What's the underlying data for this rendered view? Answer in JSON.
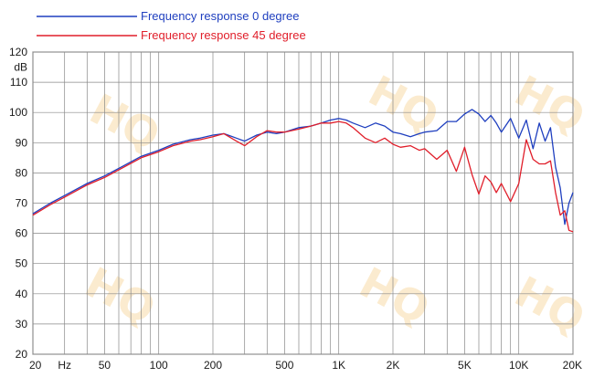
{
  "chart_data": {
    "type": "line",
    "title": "",
    "xlabel": "",
    "ylabel": "dB",
    "x_unit_label": "Hz",
    "x_scale": "log",
    "xlim": [
      20,
      20000
    ],
    "ylim": [
      20,
      120
    ],
    "grid": true,
    "legend_position": "top-left",
    "x_tick_labels": [
      {
        "value": 20,
        "label": "20"
      },
      {
        "value": 50,
        "label": "50"
      },
      {
        "value": 100,
        "label": "100"
      },
      {
        "value": 200,
        "label": "200"
      },
      {
        "value": 500,
        "label": "500"
      },
      {
        "value": 1000,
        "label": "1K"
      },
      {
        "value": 2000,
        "label": "2K"
      },
      {
        "value": 5000,
        "label": "5K"
      },
      {
        "value": 10000,
        "label": "10K"
      },
      {
        "value": 20000,
        "label": "20K"
      }
    ],
    "y_ticks": [
      20,
      30,
      40,
      50,
      60,
      70,
      80,
      90,
      100,
      110,
      120
    ],
    "series": [
      {
        "name": "Frequency response 0 degree",
        "color": "#1f3fbf",
        "x": [
          20,
          25,
          30,
          40,
          50,
          60,
          80,
          100,
          120,
          150,
          170,
          200,
          230,
          270,
          300,
          350,
          400,
          450,
          500,
          600,
          700,
          800,
          900,
          1000,
          1100,
          1200,
          1400,
          1600,
          1800,
          2000,
          2200,
          2500,
          2800,
          3000,
          3500,
          4000,
          4500,
          5000,
          5500,
          6000,
          6500,
          7000,
          7500,
          8000,
          9000,
          10000,
          11000,
          12000,
          13000,
          14000,
          15000,
          16000,
          17000,
          18000,
          19000,
          20000
        ],
        "y": [
          66.5,
          70,
          72.5,
          76.5,
          79,
          81.5,
          85.5,
          87.5,
          89.5,
          91,
          91.5,
          92.5,
          93,
          91.5,
          90.5,
          92.5,
          93.5,
          93,
          93.5,
          95,
          95.5,
          96.5,
          97.5,
          98,
          97.5,
          96.5,
          95,
          96.5,
          95.5,
          93.5,
          93,
          92,
          93,
          93.5,
          94,
          97,
          97,
          99.5,
          101,
          99.5,
          97,
          99,
          96.5,
          93.5,
          98,
          91.5,
          97.5,
          88,
          96.5,
          90.5,
          95,
          82,
          75,
          63,
          70,
          73.5
        ]
      },
      {
        "name": "Frequency response 45 degree",
        "color": "#e01e2a",
        "x": [
          20,
          25,
          30,
          40,
          50,
          60,
          80,
          100,
          120,
          150,
          170,
          200,
          230,
          270,
          300,
          350,
          400,
          450,
          500,
          600,
          700,
          800,
          900,
          1000,
          1100,
          1200,
          1400,
          1600,
          1800,
          2000,
          2200,
          2500,
          2800,
          3000,
          3500,
          4000,
          4500,
          5000,
          5500,
          6000,
          6500,
          7000,
          7500,
          8000,
          9000,
          10000,
          11000,
          12000,
          13000,
          14000,
          15000,
          16000,
          17000,
          18000,
          19000,
          20000
        ],
        "y": [
          66,
          69.5,
          72,
          76,
          78.5,
          81,
          85,
          87,
          89,
          90.5,
          91,
          92,
          93,
          90.5,
          89,
          92,
          94,
          93.5,
          93.5,
          94.5,
          95.5,
          96.5,
          96.5,
          97,
          96.5,
          95,
          91.5,
          90,
          91.5,
          89.5,
          88.5,
          89,
          87.5,
          88,
          84.5,
          87.5,
          80.5,
          88.5,
          79.5,
          73,
          79,
          77,
          73.5,
          76.5,
          70.5,
          76.5,
          91,
          84.5,
          83,
          83,
          84,
          73.5,
          66,
          67.5,
          61,
          60.5
        ]
      }
    ]
  }
}
